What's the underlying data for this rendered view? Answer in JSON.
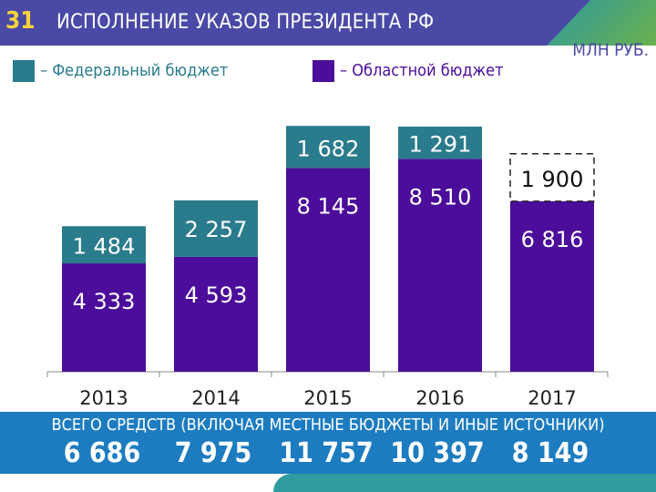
{
  "header": {
    "slide_number": "31",
    "title": "ИСПОЛНЕНИЕ УКАЗОВ ПРЕЗИДЕНТА РФ",
    "unit": "МЛН РУБ."
  },
  "legend": [
    {
      "label": "– Федеральный бюджет",
      "color": "#2a7b8c"
    },
    {
      "label": "– Областной бюджет",
      "color": "#4b0d9a"
    }
  ],
  "totals": {
    "title": "ВСЕГО СРЕДСТВ (ВКЛЮЧАЯ МЕСТНЫЕ БЮДЖЕТЫ И ИНЫЕ ИСТОЧНИКИ)",
    "values": [
      "6 686",
      "7 975",
      "11 757",
      "10 397",
      "8 149"
    ]
  },
  "chart_data": {
    "type": "bar",
    "stacked": true,
    "categories": [
      "2013",
      "2014",
      "2015",
      "2016",
      "2017"
    ],
    "series": [
      {
        "name": "Областной бюджет",
        "values": [
          4333,
          4593,
          8145,
          8510,
          6816
        ],
        "labels": [
          "4 333",
          "4 593",
          "8 145",
          "8 510",
          "6 816"
        ],
        "color": "#4b0d9a"
      },
      {
        "name": "Федеральный бюджет",
        "values": [
          1484,
          2257,
          1682,
          1291,
          1900
        ],
        "labels": [
          "1 484",
          "2 257",
          "1 682",
          "1 291",
          "1 900"
        ],
        "color": "#2a7b8c",
        "dashed_category": "2017"
      }
    ],
    "ylim": [
      0,
      11000
    ]
  }
}
